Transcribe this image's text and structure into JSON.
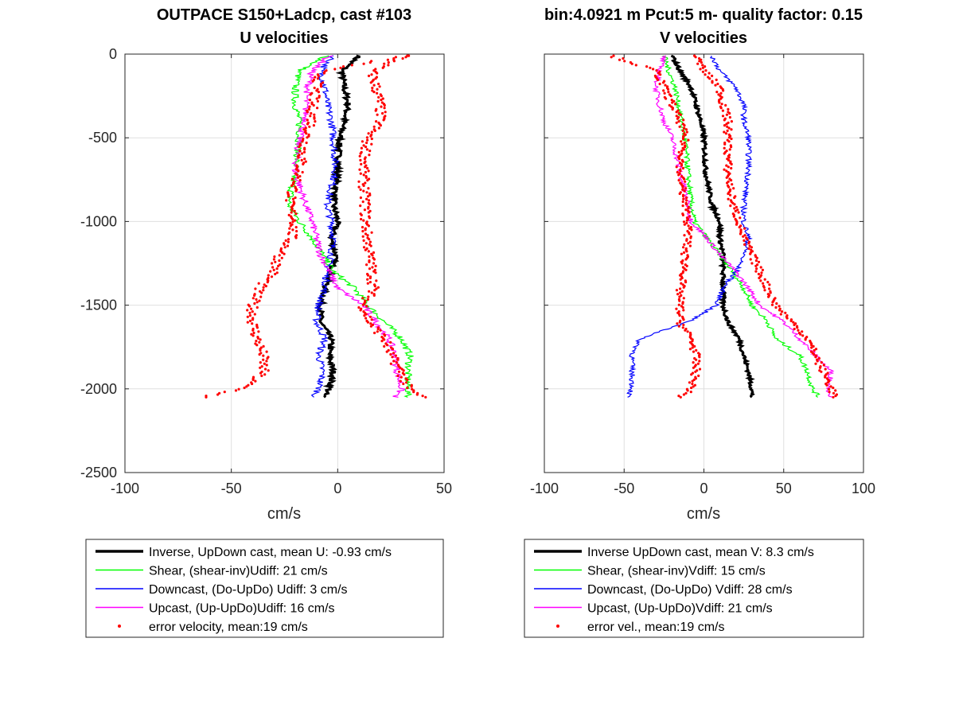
{
  "chart_data": [
    {
      "type": "line",
      "title": [
        "OUTPACE S150+Ladcp, cast #103",
        "U velocities"
      ],
      "xlabel": "cm/s",
      "ylabel": "",
      "xlim": [
        -100,
        50
      ],
      "ylim": [
        -2500,
        0
      ],
      "xticks": [
        "-100",
        "-50",
        "0",
        "50"
      ],
      "yticks": [
        "0",
        "-500",
        "-1000",
        "-1500",
        "-2000",
        "-2500"
      ],
      "grid": true,
      "legend_position": "below",
      "series": [
        {
          "name": "Inverse, UpDown cast, mean U:  -0.93 cm/s",
          "color": "#000000",
          "style": "thick-line",
          "depth": [
            -10,
            -100,
            -200,
            -300,
            -400,
            -500,
            -700,
            -900,
            -1000,
            -1100,
            -1200,
            -1300,
            -1400,
            -1500,
            -1600,
            -1700,
            -1800,
            -1900,
            -2000,
            -2050
          ],
          "values": [
            10,
            2,
            3,
            5,
            3,
            1,
            0,
            -2,
            0,
            -3,
            -1,
            -3,
            -6,
            -8,
            -8,
            -3,
            -4,
            -2,
            -4,
            -7
          ]
        },
        {
          "name": "Shear, (shear-inv)Udiff:  21 cm/s",
          "color": "#00ff00",
          "style": "line",
          "depth": [
            -10,
            -100,
            -200,
            -300,
            -400,
            -500,
            -700,
            -900,
            -1000,
            -1100,
            -1200,
            -1300,
            -1400,
            -1500,
            -1600,
            -1700,
            -1800,
            -1900,
            -2000,
            -2050
          ],
          "values": [
            -5,
            -18,
            -20,
            -20,
            -18,
            -18,
            -20,
            -23,
            -18,
            -12,
            -7,
            -2,
            8,
            14,
            22,
            30,
            34,
            33,
            33,
            33
          ]
        },
        {
          "name": "Downcast, (Do-UpDo) Udiff:  3 cm/s",
          "color": "#0000ff",
          "style": "line",
          "depth": [
            -10,
            -100,
            -200,
            -300,
            -400,
            -500,
            -700,
            -900,
            -1000,
            -1100,
            -1200,
            -1300,
            -1400,
            -1500,
            -1600,
            -1700,
            -1800,
            -1900,
            -2000,
            -2050
          ],
          "values": [
            -2,
            -8,
            -6,
            -5,
            -3,
            -2,
            -1,
            -5,
            -3,
            -2,
            -3,
            -5,
            -6,
            -9,
            -10,
            -6,
            -9,
            -7,
            -9,
            -11
          ]
        },
        {
          "name": "Upcast, (Up-UpDo)Udiff:  16 cm/s",
          "color": "#ff00ff",
          "style": "line",
          "depth": [
            -10,
            -100,
            -200,
            -300,
            -400,
            -500,
            -700,
            -900,
            -1000,
            -1100,
            -1200,
            -1300,
            -1400,
            -1500,
            -1600,
            -1700,
            -1800,
            -1900,
            -2000,
            -2050
          ],
          "values": [
            -4,
            -12,
            -14,
            -15,
            -15,
            -18,
            -20,
            -15,
            -12,
            -10,
            -8,
            -4,
            0,
            12,
            18,
            24,
            27,
            28,
            30,
            27
          ]
        },
        {
          "name": "error velocity, mean:19 cm/s",
          "color": "#ff0000",
          "style": "dots",
          "depth": [
            -10,
            -100,
            -200,
            -300,
            -400,
            -500,
            -700,
            -900,
            -1000,
            -1100,
            -1200,
            -1300,
            -1400,
            -1500,
            -1600,
            -1700,
            -1800,
            -1900,
            -2000,
            -2050
          ],
          "values": [
            32,
            -8,
            -10,
            -12,
            -12,
            -15,
            -18,
            -23,
            -20,
            -22,
            -27,
            -30,
            -37,
            -40,
            -40,
            -38,
            -35,
            -35,
            -45,
            -63
          ],
          "values_b": [
            32,
            16,
            18,
            20,
            20,
            14,
            12,
            13,
            13,
            14,
            15,
            16,
            17,
            12,
            15,
            22,
            25,
            30,
            33,
            40
          ]
        }
      ]
    },
    {
      "type": "line",
      "title": [
        "bin:4.0921 m  Pcut:5 m- quality factor:  0.15",
        "V velocities"
      ],
      "xlabel": "cm/s",
      "ylabel": "",
      "xlim": [
        -100,
        100
      ],
      "ylim": [
        -2500,
        0
      ],
      "xticks": [
        "-100",
        "-50",
        "0",
        "50",
        "100"
      ],
      "grid": true,
      "legend_position": "below",
      "series": [
        {
          "name": "Inverse UpDown cast, mean V:  8.3 cm/s",
          "color": "#000000",
          "style": "thick-line",
          "depth": [
            -10,
            -100,
            -200,
            -300,
            -400,
            -500,
            -700,
            -900,
            -1000,
            -1100,
            -1200,
            -1300,
            -1400,
            -1500,
            -1600,
            -1700,
            -1800,
            -1900,
            -2000,
            -2050
          ],
          "values": [
            -20,
            -15,
            -8,
            -5,
            -2,
            0,
            1,
            5,
            10,
            10,
            12,
            12,
            12,
            12,
            15,
            22,
            25,
            28,
            30,
            30
          ]
        },
        {
          "name": "Shear, (shear-inv)Vdiff:  15 cm/s",
          "color": "#00ff00",
          "style": "line",
          "depth": [
            -10,
            -100,
            -200,
            -300,
            -400,
            -500,
            -700,
            -900,
            -1000,
            -1100,
            -1200,
            -1300,
            -1400,
            -1500,
            -1600,
            -1700,
            -1800,
            -1900,
            -2000,
            -2050
          ],
          "values": [
            -25,
            -22,
            -18,
            -16,
            -14,
            -12,
            -10,
            -8,
            -6,
            2,
            10,
            18,
            25,
            30,
            40,
            45,
            60,
            65,
            68,
            72
          ]
        },
        {
          "name": "Downcast, (Do-UpDo) Vdiff:  28 cm/s",
          "color": "#0000ff",
          "style": "line",
          "depth": [
            -10,
            -100,
            -200,
            -300,
            -400,
            -500,
            -700,
            -900,
            -1000,
            -1100,
            -1200,
            -1300,
            -1400,
            -1500,
            -1600,
            -1700,
            -1800,
            -1900,
            -2000,
            -2050
          ],
          "values": [
            5,
            10,
            20,
            25,
            25,
            28,
            28,
            25,
            25,
            28,
            25,
            20,
            12,
            8,
            -10,
            -40,
            -45,
            -45,
            -45,
            -48
          ]
        },
        {
          "name": "Upcast, (Up-UpDo)Vdiff:  21 cm/s",
          "color": "#ff00ff",
          "style": "line",
          "depth": [
            -10,
            -100,
            -200,
            -300,
            -400,
            -500,
            -700,
            -900,
            -1000,
            -1100,
            -1200,
            -1300,
            -1400,
            -1500,
            -1600,
            -1700,
            -1800,
            -1900,
            -2000,
            -2050
          ],
          "values": [
            -25,
            -28,
            -30,
            -28,
            -25,
            -20,
            -15,
            -10,
            -8,
            2,
            10,
            20,
            28,
            35,
            50,
            60,
            70,
            80,
            78,
            80
          ]
        },
        {
          "name": "error vel., mean:19 cm/s",
          "color": "#ff0000",
          "style": "dots",
          "depth": [
            -10,
            -100,
            -200,
            -300,
            -400,
            -500,
            -700,
            -900,
            -1000,
            -1100,
            -1200,
            -1300,
            -1400,
            -1500,
            -1600,
            -1700,
            -1800,
            -1900,
            -2000,
            -2050
          ],
          "values": [
            -58,
            -30,
            -25,
            -20,
            -15,
            -12,
            -15,
            -12,
            -10,
            -10,
            -12,
            -12,
            -15,
            -15,
            -15,
            -8,
            -5,
            -5,
            -8,
            -15
          ],
          "values_b": [
            -5,
            0,
            10,
            12,
            15,
            15,
            15,
            18,
            22,
            25,
            30,
            35,
            40,
            45,
            55,
            65,
            70,
            75,
            80,
            82
          ]
        }
      ]
    }
  ]
}
